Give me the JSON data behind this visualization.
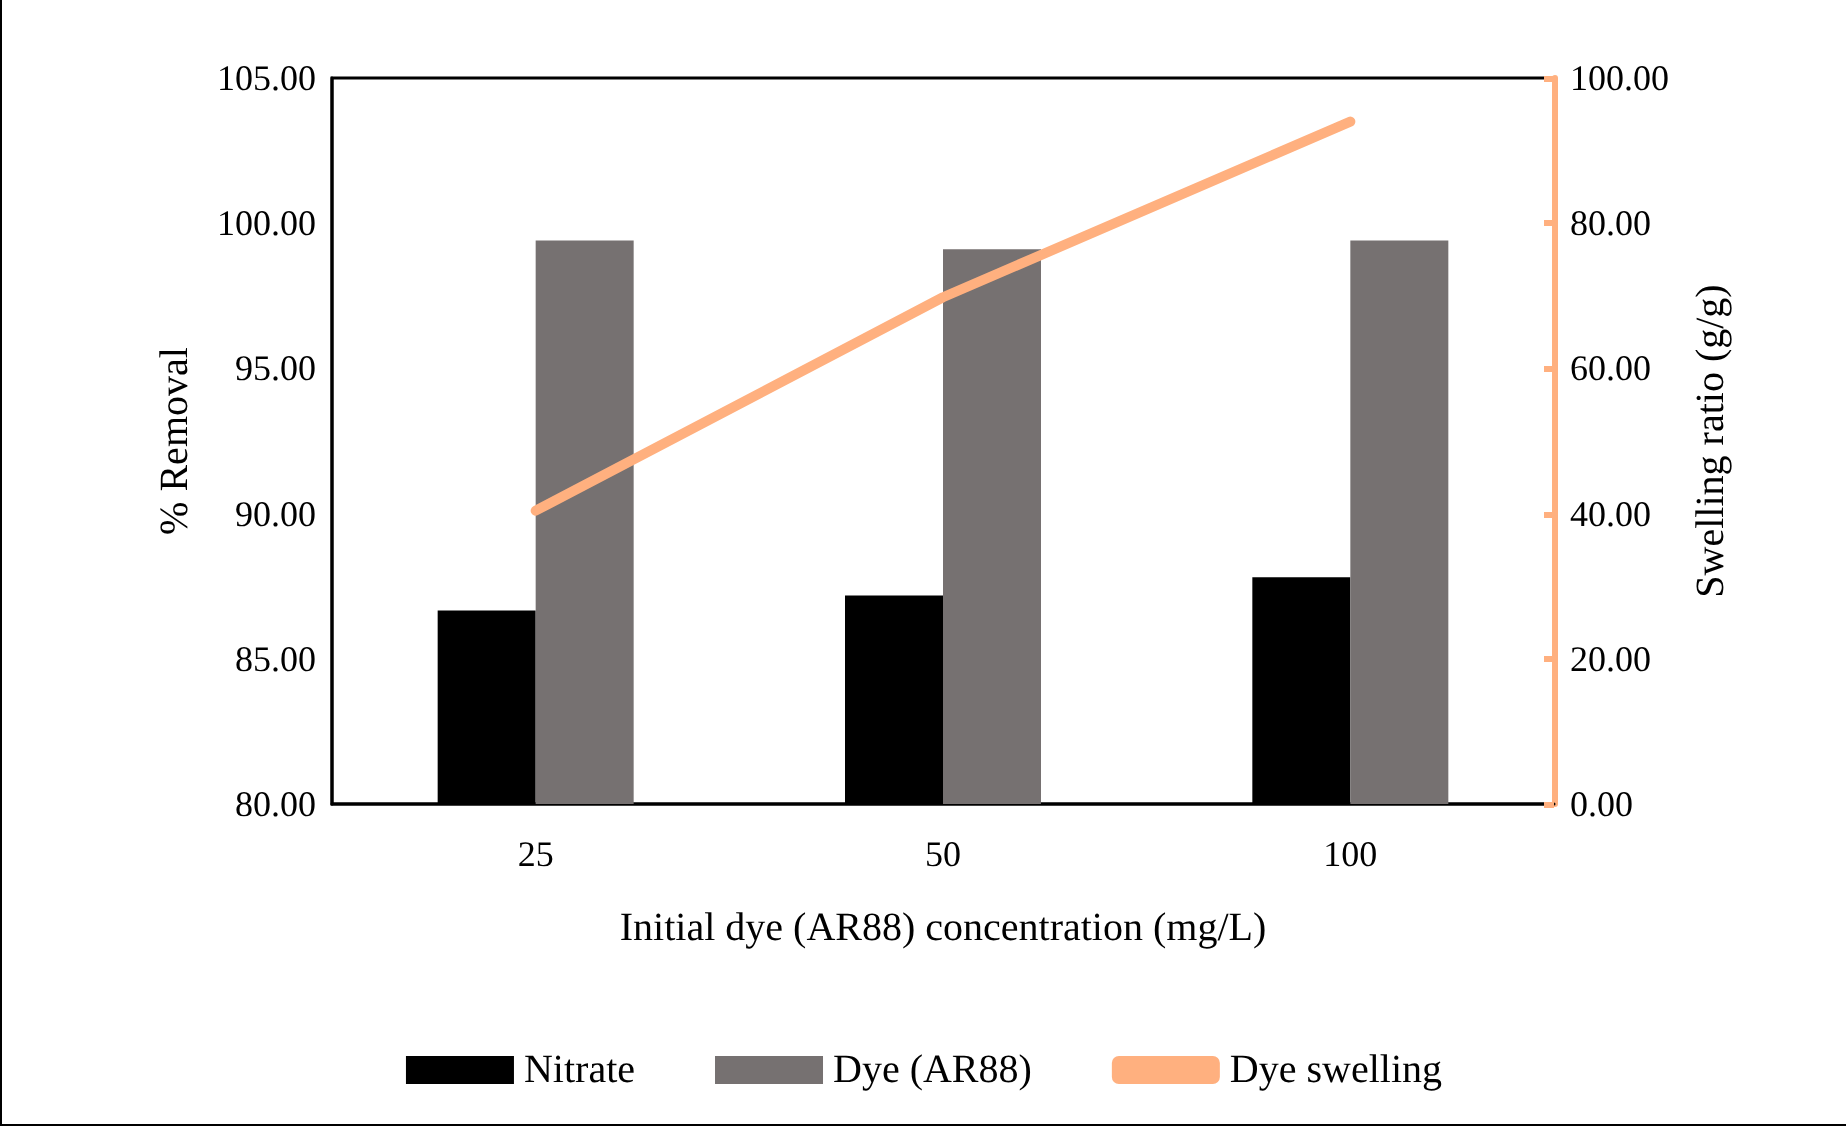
{
  "chart_data": {
    "type": "bar",
    "xlabel": "Initial dye (AR88) concentration (mg/L)",
    "ylabel": "% Removal",
    "y2label": "Swelling ratio (g/g)",
    "categories": [
      "25",
      "50",
      "100"
    ],
    "series": [
      {
        "name": "Nitrate",
        "color": "#000000",
        "values": [
          86.66,
          87.18,
          87.81
        ]
      },
      {
        "name": "Dye (AR88)",
        "color": "#767171",
        "values": [
          99.4,
          99.1,
          99.4
        ]
      },
      {
        "name": "Dye swelling",
        "color": "#ffb07f",
        "type": "line",
        "axis": "y2",
        "values": [
          40.4,
          69.8,
          94.0
        ]
      }
    ],
    "ylim": [
      80,
      105
    ],
    "yticks": [
      {
        "value": 80,
        "label": "80.00"
      },
      {
        "value": 85,
        "label": "85.00"
      },
      {
        "value": 90,
        "label": "90.00"
      },
      {
        "value": 95,
        "label": "95.00"
      },
      {
        "value": 100,
        "label": "100.00"
      },
      {
        "value": 105,
        "label": "105.00"
      }
    ],
    "y2lim": [
      0,
      100
    ],
    "y2ticks": [
      {
        "value": 0,
        "label": "0.00"
      },
      {
        "value": 20,
        "label": "20.00"
      },
      {
        "value": 40,
        "label": "40.00"
      },
      {
        "value": 60,
        "label": "60.00"
      },
      {
        "value": 80,
        "label": "80.00"
      },
      {
        "value": 100,
        "label": "100.00"
      }
    ],
    "grid": false,
    "legend": "bottom",
    "marker": "none",
    "line_style": "solid"
  }
}
